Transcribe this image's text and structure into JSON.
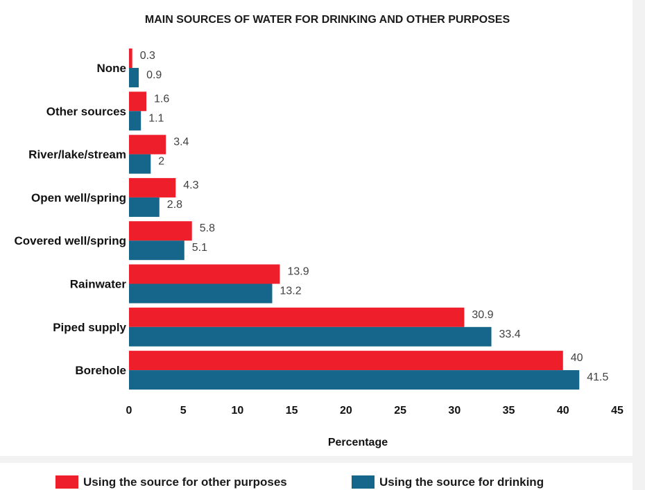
{
  "chart_data": {
    "type": "bar",
    "orientation": "horizontal",
    "title": "MAIN SOURCES OF WATER FOR DRINKING AND OTHER PURPOSES",
    "xlabel": "Percentage",
    "ylabel": "",
    "xlim": [
      0,
      45
    ],
    "xticks": [
      "0",
      "5",
      "10",
      "15",
      "20",
      "25",
      "30",
      "35",
      "40",
      "45"
    ],
    "categories": [
      "None",
      "Other sources",
      "River/lake/stream",
      "Open well/spring",
      "Covered well/spring",
      "Rainwater",
      "Piped supply",
      "Borehole"
    ],
    "series": [
      {
        "name": "Using the source for other purposes",
        "color": "#ee1f2b",
        "values": [
          0.3,
          1.6,
          3.4,
          4.3,
          5.8,
          13.9,
          30.9,
          40
        ],
        "labels": [
          "0.3",
          "1.6",
          "3.4",
          "4.3",
          "5.8",
          "13.9",
          "30.9",
          "40"
        ]
      },
      {
        "name": "Using the source for drinking",
        "color": "#16658a",
        "values": [
          0.9,
          1.1,
          2,
          2.8,
          5.1,
          13.2,
          33.4,
          41.5
        ],
        "labels": [
          "0.9",
          "1.1",
          "2",
          "2.8",
          "5.1",
          "13.2",
          "33.4",
          "41.5"
        ]
      }
    ],
    "grid": false,
    "legend_position": "bottom"
  }
}
